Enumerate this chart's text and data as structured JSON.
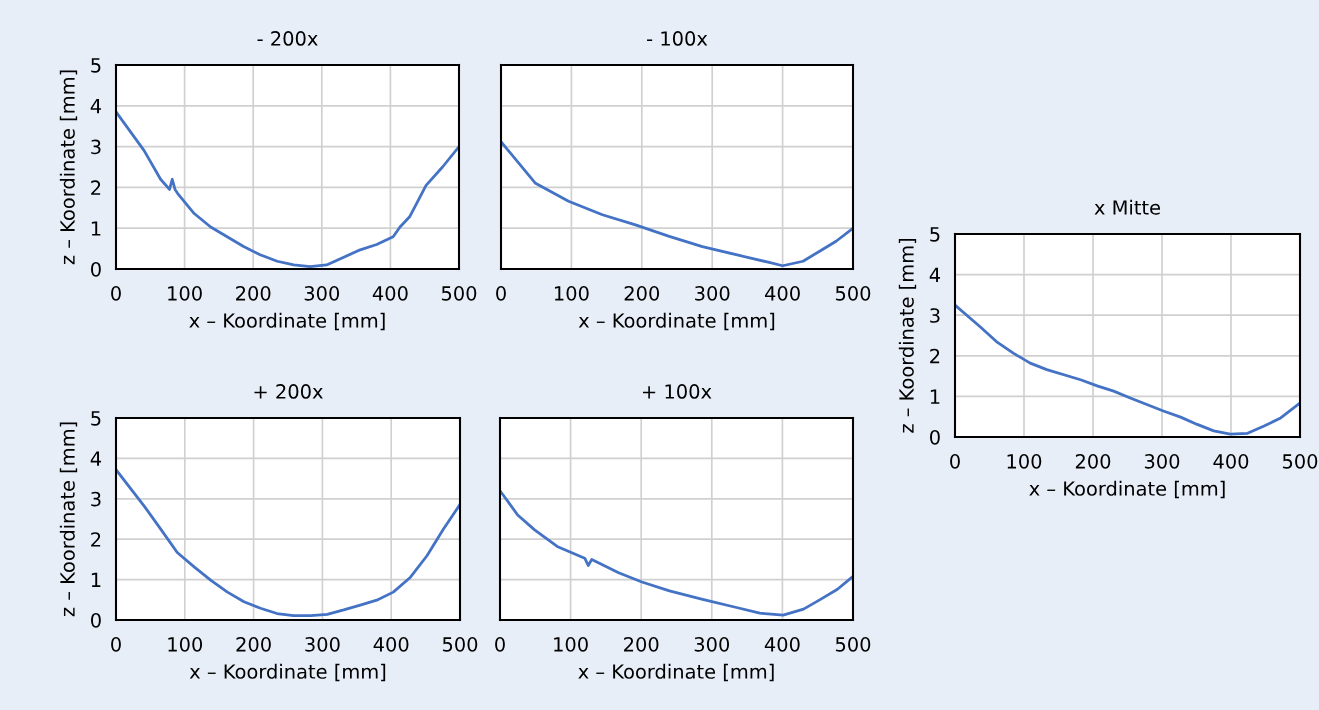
{
  "chart_data": [
    {
      "type": "line",
      "title": "- 200x",
      "xlabel": "x – Koordinate [mm]",
      "ylabel": "z – Koordinate [mm]",
      "xlim": [
        0,
        500
      ],
      "xticks": [
        0,
        100,
        200,
        300,
        400,
        500
      ],
      "ylim": [
        0,
        5
      ],
      "yticks": [
        0,
        1,
        2,
        3,
        4,
        5
      ],
      "grid": true,
      "marker": "none",
      "line_style": "solid",
      "series": [
        {
          "color": "#4472c4",
          "x": [
            0,
            41,
            65,
            78,
            82,
            86,
            90,
            114,
            138,
            162,
            186,
            210,
            235,
            259,
            283,
            307,
            356,
            380,
            404,
            414,
            428,
            452,
            476,
            500
          ],
          "values": [
            3.85,
            2.9,
            2.2,
            1.95,
            2.2,
            1.95,
            1.85,
            1.36,
            1.03,
            0.79,
            0.55,
            0.35,
            0.19,
            0.1,
            0.06,
            0.1,
            0.47,
            0.6,
            0.79,
            1.03,
            1.28,
            2.05,
            2.5,
            3.0
          ]
        }
      ]
    },
    {
      "type": "line",
      "title": "- 100x",
      "xlabel": "x – Koordinate [mm]",
      "xlim": [
        0,
        500
      ],
      "xticks": [
        0,
        100,
        200,
        300,
        400,
        500
      ],
      "ylim": [
        0,
        5
      ],
      "yticks": [
        0,
        1,
        2,
        3,
        4,
        5
      ],
      "grid": true,
      "tick_labels": "x",
      "marker": "none",
      "line_style": "solid",
      "series": [
        {
          "color": "#4472c4",
          "x": [
            0,
            49,
            96,
            144,
            191,
            239,
            286,
            334,
            381,
            400,
            429,
            452,
            476,
            500
          ],
          "values": [
            3.12,
            2.1,
            1.66,
            1.33,
            1.08,
            0.8,
            0.55,
            0.35,
            0.16,
            0.08,
            0.19,
            0.43,
            0.68,
            1.0
          ]
        }
      ]
    },
    {
      "type": "line",
      "title": "+ 200x",
      "xlabel": "x – Koordinate [mm]",
      "ylabel": "z – Koordinate [mm]",
      "xlim": [
        0,
        500
      ],
      "xticks": [
        0,
        100,
        200,
        300,
        400,
        500
      ],
      "ylim": [
        0,
        5
      ],
      "yticks": [
        0,
        1,
        2,
        3,
        4,
        5
      ],
      "grid": true,
      "marker": "none",
      "line_style": "solid",
      "series": [
        {
          "color": "#4472c4",
          "x": [
            0,
            41,
            65,
            89,
            114,
            138,
            162,
            186,
            210,
            234,
            258,
            283,
            307,
            331,
            355,
            379,
            403,
            428,
            452,
            476,
            500
          ],
          "values": [
            3.72,
            2.82,
            2.25,
            1.67,
            1.31,
            0.98,
            0.69,
            0.45,
            0.29,
            0.16,
            0.11,
            0.11,
            0.14,
            0.25,
            0.37,
            0.49,
            0.69,
            1.06,
            1.59,
            2.25,
            2.86
          ]
        }
      ]
    },
    {
      "type": "line",
      "title": "+ 100x",
      "xlabel": "x – Koordinate [mm]",
      "xlim": [
        0,
        500
      ],
      "xticks": [
        0,
        100,
        200,
        300,
        400,
        500
      ],
      "ylim": [
        0,
        5
      ],
      "yticks": [
        0,
        1,
        2,
        3,
        4,
        5
      ],
      "grid": true,
      "tick_labels": "x",
      "marker": "none",
      "line_style": "solid",
      "series": [
        {
          "color": "#4472c4",
          "x": [
            0,
            25,
            49,
            81,
            120,
            125,
            130,
            168,
            201,
            240,
            287,
            335,
            368,
            401,
            430,
            454,
            478,
            500
          ],
          "values": [
            3.2,
            2.6,
            2.23,
            1.82,
            1.53,
            1.35,
            1.5,
            1.17,
            0.94,
            0.72,
            0.51,
            0.31,
            0.17,
            0.12,
            0.27,
            0.51,
            0.76,
            1.08
          ]
        }
      ]
    },
    {
      "type": "line",
      "title": "x Mitte",
      "xlabel": "x – Koordinate [mm]",
      "ylabel": "z – Koordinate [mm]",
      "xlim": [
        0,
        500
      ],
      "xticks": [
        0,
        100,
        200,
        300,
        400,
        500
      ],
      "ylim": [
        0,
        5
      ],
      "yticks": [
        0,
        1,
        2,
        3,
        4,
        5
      ],
      "grid": true,
      "marker": "none",
      "line_style": "solid",
      "series": [
        {
          "color": "#4472c4",
          "x": [
            0,
            36,
            60,
            85,
            109,
            133,
            182,
            206,
            230,
            254,
            278,
            302,
            327,
            351,
            375,
            399,
            424,
            448,
            472,
            500
          ],
          "values": [
            3.25,
            2.72,
            2.35,
            2.06,
            1.82,
            1.66,
            1.41,
            1.26,
            1.13,
            0.96,
            0.8,
            0.64,
            0.49,
            0.31,
            0.15,
            0.07,
            0.09,
            0.27,
            0.47,
            0.84
          ]
        }
      ]
    }
  ]
}
